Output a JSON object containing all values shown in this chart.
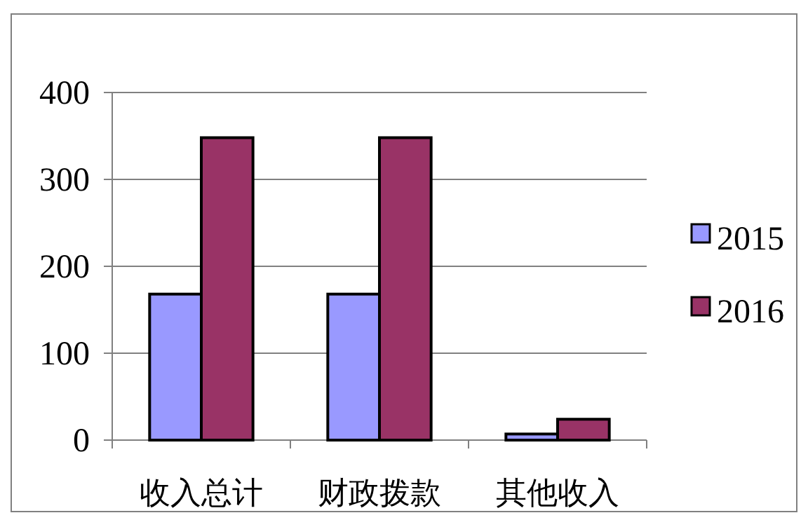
{
  "chart_data": {
    "type": "bar",
    "categories": [
      "收入总计",
      "财政拨款",
      "其他收入"
    ],
    "series": [
      {
        "name": "2015",
        "color": "#9999ff",
        "values": [
          168,
          168,
          7
        ]
      },
      {
        "name": "2016",
        "color": "#993366",
        "values": [
          348,
          348,
          24
        ]
      }
    ],
    "ylim": [
      0,
      400
    ],
    "yticks": [
      0,
      100,
      200,
      300,
      400
    ],
    "grid": "y",
    "legend": "right"
  }
}
